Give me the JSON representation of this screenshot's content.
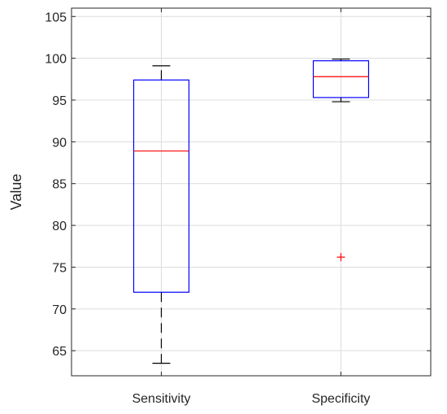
{
  "chart_data": {
    "type": "box",
    "title": "",
    "xlabel": "",
    "ylabel": "Value",
    "ylim": [
      62,
      106
    ],
    "yticks": [
      65,
      70,
      75,
      80,
      85,
      90,
      95,
      100,
      105
    ],
    "grid": true,
    "categories": [
      "Sensitivity",
      "Specificity"
    ],
    "boxes": [
      {
        "name": "Sensitivity",
        "whisker_low": 63.5,
        "q1": 72,
        "median": 88.9,
        "q3": 97.4,
        "whisker_high": 99.1,
        "outliers": []
      },
      {
        "name": "Specificity",
        "whisker_low": 94.8,
        "q1": 95.3,
        "median": 97.8,
        "q3": 99.7,
        "whisker_high": 99.9,
        "outliers": [
          76.2
        ]
      }
    ],
    "colors": {
      "box": "#0000ff",
      "median": "#ff0000",
      "whisker": "#000000",
      "outlier": "#ff0000",
      "grid": "#dcdcdc",
      "axis": "#262626"
    }
  }
}
